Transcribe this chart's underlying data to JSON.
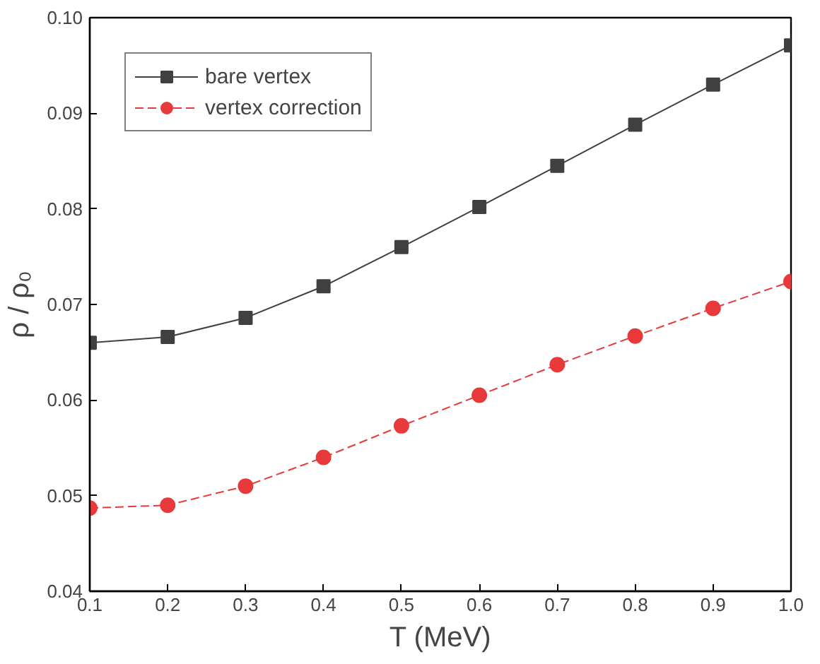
{
  "chart_data": {
    "type": "line",
    "xlabel": "T (MeV)",
    "ylabel": "ρ / ρ₀",
    "x": [
      0.1,
      0.2,
      0.3,
      0.4,
      0.5,
      0.6,
      0.7,
      0.8,
      0.9,
      1.0
    ],
    "series": [
      {
        "name": "bare vertex",
        "color": "#404040",
        "marker": "square",
        "line_style": "solid",
        "values": [
          0.066,
          0.0666,
          0.0686,
          0.0719,
          0.076,
          0.0802,
          0.0845,
          0.0888,
          0.093,
          0.0971
        ]
      },
      {
        "name": "vertex correction",
        "color": "#e83a3a",
        "marker": "circle",
        "line_style": "dashed",
        "values": [
          0.0487,
          0.049,
          0.051,
          0.054,
          0.0573,
          0.0605,
          0.0637,
          0.0667,
          0.0696,
          0.0724
        ]
      }
    ],
    "xlim": [
      0.1,
      1.0
    ],
    "ylim": [
      0.04,
      0.1
    ],
    "xticks": [
      0.1,
      0.2,
      0.3,
      0.4,
      0.5,
      0.6,
      0.7,
      0.8,
      0.9,
      {
        "value": 1.0,
        "label": "1.0"
      }
    ],
    "yticks": [
      0.04,
      0.05,
      0.06,
      0.07,
      0.08,
      0.09,
      {
        "value": 0.1,
        "label": "0.10"
      }
    ],
    "grid": false,
    "legend": "top left"
  }
}
